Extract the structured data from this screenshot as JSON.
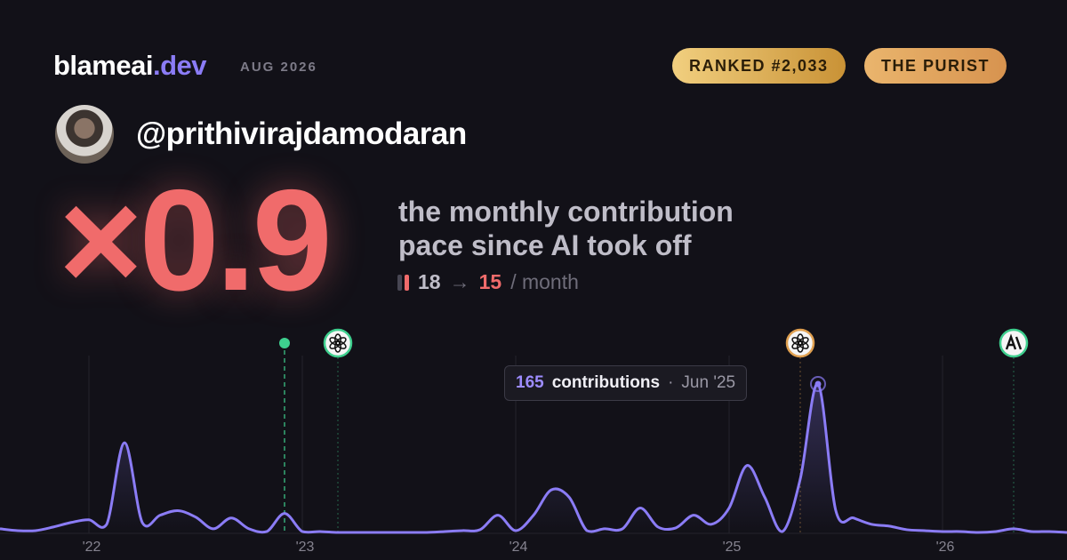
{
  "header": {
    "brand": "blameai",
    "brand_tld": ".dev",
    "date": "AUG 2026",
    "badges": [
      "RANKED #2,033",
      "THE PURIST"
    ]
  },
  "user": {
    "handle": "@prithivirajdamodaran"
  },
  "headline": {
    "multiplier": "×0.9",
    "caption": [
      "the monthly contribution",
      "pace since AI took off"
    ],
    "before": 18,
    "arrow": "→",
    "after": 15,
    "unit": "/ month"
  },
  "tooltip": {
    "label": "contributions",
    "separator": "·",
    "date": "Jun '25"
  },
  "chart_data": {
    "type": "line",
    "x": [
      "2021-08",
      "2021-09",
      "2021-10",
      "2021-11",
      "2021-12",
      "2022-01",
      "2022-02",
      "2022-03",
      "2022-04",
      "2022-05",
      "2022-06",
      "2022-07",
      "2022-08",
      "2022-09",
      "2022-10",
      "2022-11",
      "2022-12",
      "2023-01",
      "2023-02",
      "2023-03",
      "2023-04",
      "2023-05",
      "2023-06",
      "2023-07",
      "2023-08",
      "2023-09",
      "2023-10",
      "2023-11",
      "2023-12",
      "2024-01",
      "2024-02",
      "2024-03",
      "2024-04",
      "2024-05",
      "2024-06",
      "2024-07",
      "2024-08",
      "2024-09",
      "2024-10",
      "2024-11",
      "2024-12",
      "2025-01",
      "2025-02",
      "2025-03",
      "2025-04",
      "2025-05",
      "2025-06",
      "2025-07",
      "2025-08",
      "2025-09",
      "2025-10",
      "2025-11",
      "2025-12",
      "2026-01",
      "2026-02",
      "2026-03",
      "2026-04",
      "2026-05",
      "2026-06",
      "2026-07",
      "2026-08"
    ],
    "series": [
      {
        "color": "#8b7cf6",
        "values": [
          5,
          3,
          3,
          7,
          12,
          15,
          10,
          100,
          12,
          20,
          25,
          18,
          5,
          17,
          5,
          2,
          22,
          2,
          2,
          1,
          1,
          1,
          1,
          1,
          1,
          2,
          3,
          4,
          20,
          3,
          20,
          48,
          40,
          3,
          5,
          5,
          28,
          7,
          6,
          20,
          10,
          28,
          75,
          40,
          2,
          60,
          165,
          25,
          17,
          10,
          8,
          4,
          3,
          2,
          2,
          1,
          2,
          5,
          2,
          2,
          1
        ]
      }
    ],
    "xlim": [
      "2021-08",
      "2026-08"
    ],
    "ylim": [
      0,
      165
    ],
    "xticks": [
      {
        "value": "2022-01",
        "label": "'22"
      },
      {
        "value": "2023-01",
        "label": "'23"
      },
      {
        "value": "2024-01",
        "label": "'24"
      },
      {
        "value": "2025-01",
        "label": "'25"
      },
      {
        "value": "2026-01",
        "label": "'26"
      }
    ],
    "grid": true,
    "markers": [
      {
        "x": "2022-12",
        "icon": "dot",
        "color": "#3ecf8e"
      },
      {
        "x": "2023-03",
        "icon": "openai",
        "color": "#3ecf8e"
      },
      {
        "x": "2025-05",
        "icon": "openai",
        "color": "#e0a050"
      },
      {
        "x": "2026-05",
        "icon": "anthropic",
        "color": "#3ecf8e"
      }
    ]
  }
}
